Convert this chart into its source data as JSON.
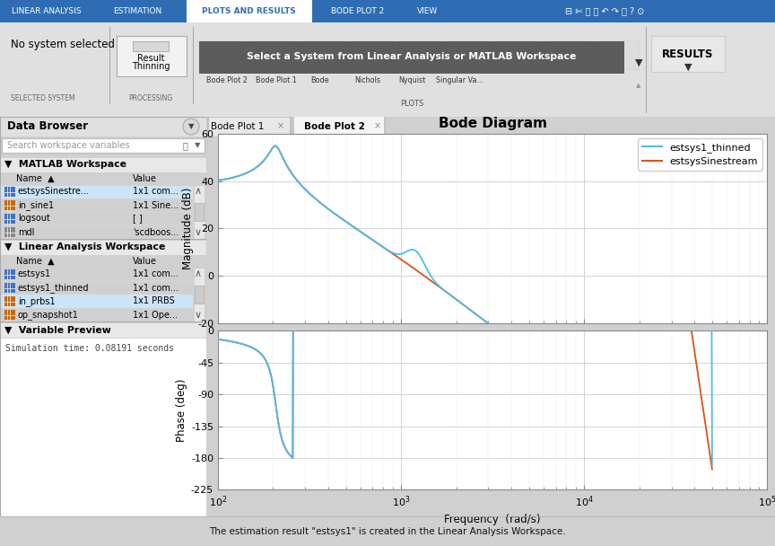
{
  "title": "Bode Diagram",
  "freq_min": 100,
  "freq_max": 100000,
  "mag_ylim": [
    -20,
    60
  ],
  "mag_yticks": [
    -20,
    0,
    20,
    40,
    60
  ],
  "phase_ylim": [
    -225,
    0
  ],
  "phase_yticks": [
    -225,
    -180,
    -135,
    -90,
    -45,
    0
  ],
  "mag_ylabel": "Magnitude (dB)",
  "phase_ylabel": "Phase (deg)",
  "xlabel": "Frequency  (rad/s)",
  "legend1": "estsys1_thinned",
  "legend2": "estsysSinestream",
  "color_blue": "#4DBEEE",
  "color_orange": "#D95319",
  "footer_text": "The estimation result \"estsys1\" is created in the Linear Analysis Workspace.",
  "tabs_top": [
    "LINEAR ANALYSIS",
    "ESTIMATION",
    "PLOTS AND RESULTS",
    "BODE PLOT 2",
    "VIEW"
  ],
  "tab_selected_idx": 2,
  "plot_tabs": [
    "Bode Plot 1",
    "Bode Plot 2"
  ],
  "sidebar_title": "Data Browser",
  "matlab_ws_label": "MATLAB Workspace",
  "matlab_ws_items": [
    [
      "estsysSinestre...",
      "1x1 com..."
    ],
    [
      "in_sine1",
      "1x1 Sine..."
    ],
    [
      "logsout",
      "[ ]"
    ],
    [
      "mdl",
      "'scdboos..."
    ]
  ],
  "matlab_ws_highlight": 0,
  "lin_ws_label": "Linear Analysis Workspace",
  "lin_ws_items": [
    [
      "estsys1",
      "1x1 com..."
    ],
    [
      "estsys1_thinned",
      "1x1 com..."
    ],
    [
      "in_prbs1",
      "1x1 PRBS"
    ],
    [
      "op_snapshot1",
      "1x1 Ope..."
    ]
  ],
  "lin_ws_highlight": 2,
  "var_preview_label": "Variable Preview",
  "var_preview_text": "Simulation time: 0.08191 seconds",
  "toolbar_chart_labels": [
    "Bode Plot 2",
    "Bode Plot 1",
    "Bode",
    "Nichols",
    "Nyquist",
    "Singular Va..."
  ],
  "selected_system_label": "No system selected",
  "processing_label": "Result\nThinning",
  "selected_system_section": "SELECTED SYSTEM",
  "processing_section": "PROCESSING",
  "results_label": "RESULTS",
  "plots_section": "PLOTS"
}
